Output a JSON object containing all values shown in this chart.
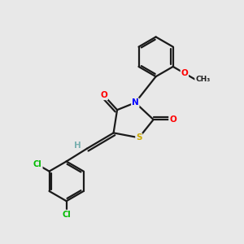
{
  "background_color": "#e8e8e8",
  "bond_color": "#1a1a1a",
  "atom_colors": {
    "O": "#ff0000",
    "N": "#0000ff",
    "S": "#ccaa00",
    "Cl": "#00bb00",
    "H": "#7ab0b0",
    "C": "#1a1a1a"
  }
}
